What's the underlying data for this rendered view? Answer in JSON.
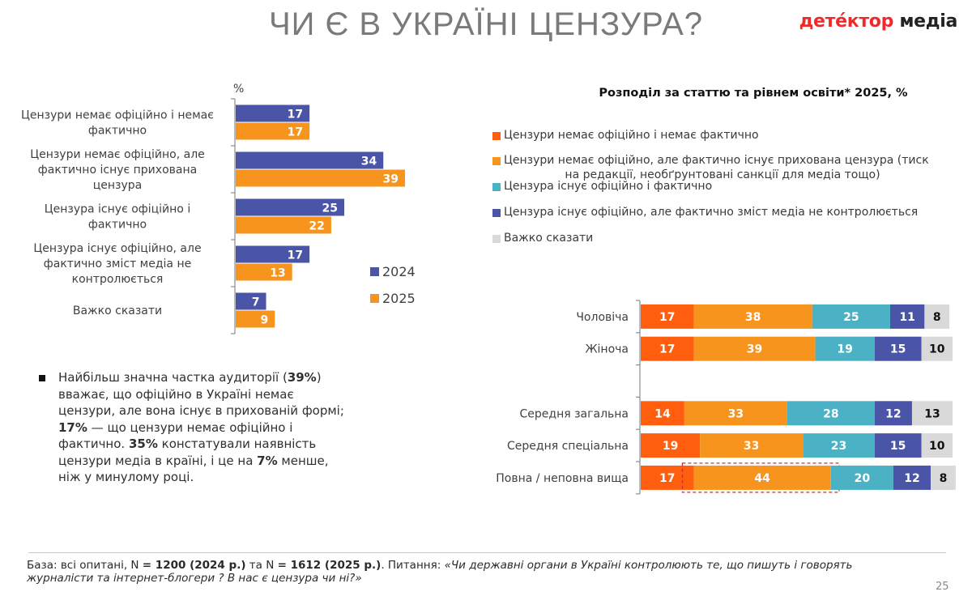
{
  "header": {
    "title": "ЧИ Є В УКРАЇНІ ЦЕНЗУРА?",
    "logo_part1": "детéктор",
    "logo_part2": "медіа"
  },
  "colors": {
    "y2024": "#4a55a8",
    "y2025": "#f7941d",
    "c_none": "#fe5e0e",
    "c_hidden": "#f7941d",
    "c_official": "#4bb2c5",
    "c_official_notcontrolled": "#4a55a8",
    "c_hard": "#d9d9d9",
    "highlight_box": "#d62d2d",
    "title_gray": "#7a7a7a",
    "logo_red": "#ef2a2a"
  },
  "chart_data": [
    {
      "type": "bar",
      "orientation": "horizontal",
      "title": "",
      "unit_label": "%",
      "categories": [
        "Цензури немає офіційно і немає фактично",
        "Цензури немає офіційно, але фактично існує прихована цензура",
        "Цензура існує офіційно і фактично",
        "Цензура існує офіційно, але фактично зміст медіа не контролюється",
        "Важко сказати"
      ],
      "category_lines": [
        [
          "Цензури немає офіційно і немає",
          "фактично"
        ],
        [
          "Цензури немає офіційно, але",
          "фактично існує прихована",
          "цензура"
        ],
        [
          "Цензура існує офіційно і",
          "фактично"
        ],
        [
          "Цензура існує офіційно, але",
          "фактично зміст медіа не",
          "контролюється"
        ],
        [
          "Важко сказати"
        ]
      ],
      "series": [
        {
          "name": "2024",
          "values": [
            17,
            34,
            25,
            17,
            7
          ]
        },
        {
          "name": "2025",
          "values": [
            17,
            39,
            22,
            13,
            9
          ]
        }
      ],
      "xlim": [
        0,
        40
      ],
      "legend_position": "right",
      "grid": false
    },
    {
      "type": "bar",
      "orientation": "horizontal",
      "stacked": true,
      "title": "Розподіл за статтю та рівнем освіти* 2025, %",
      "categories": [
        "Чоловіча",
        "Жіноча",
        "",
        "Середня загальна",
        "Середня спеціальна",
        "Повна / неповна вища"
      ],
      "series": [
        {
          "name": "Цензури немає офіційно і немає фактично",
          "values": [
            17,
            17,
            null,
            14,
            19,
            17
          ]
        },
        {
          "name": "Цензури немає офіційно, але фактично існує прихована цензура (тиск на редакції, необґрунтовані санкції для медіа тощо)",
          "values": [
            38,
            39,
            null,
            33,
            33,
            44
          ]
        },
        {
          "name": "Цензура існує офіційно і фактично",
          "values": [
            25,
            19,
            null,
            28,
            23,
            20
          ]
        },
        {
          "name": "Цензура існує офіційно, але фактично зміст медіа не контролюється",
          "values": [
            11,
            15,
            null,
            12,
            15,
            12
          ]
        },
        {
          "name": "Важко сказати",
          "values": [
            8,
            10,
            null,
            13,
            10,
            8
          ]
        }
      ],
      "annotations": [
        "Dashed red box highlighting value 44 for 'Повна / неповна вища'"
      ],
      "legend_position": "top",
      "xlim": [
        0,
        100
      ],
      "grid": false
    }
  ],
  "legend1": {
    "items": [
      "2024",
      "2025"
    ]
  },
  "legend2": {
    "items": [
      {
        "line1": "Цензури немає офіційно і немає фактично"
      },
      {
        "line1": "Цензури немає офіційно, але фактично існує прихована цензура (тиск",
        "line2": "на редакції, необґрунтовані санкції для медіа тощо)"
      },
      {
        "line1": "Цензура існує офіційно і фактично"
      },
      {
        "line1": "Цензура існує офіційно, але фактично зміст медіа не контролюється"
      },
      {
        "line1": "Важко сказати"
      }
    ]
  },
  "summary": {
    "parts": [
      {
        "t": "Найбільш значна частка аудиторії (",
        "b": false
      },
      {
        "t": "39%",
        "b": true
      },
      {
        "t": ") вважає, що офіційно в Україні немає цензури, але вона існує в прихованій формі; ",
        "b": false
      },
      {
        "t": "17%",
        "b": true
      },
      {
        "t": " — що цензури немає офіційно і фактично. ",
        "b": false
      },
      {
        "t": "35%",
        "b": true
      },
      {
        "t": " констатували наявність цензури медіа в країні, і це на ",
        "b": false
      },
      {
        "t": "7%",
        "b": true
      },
      {
        "t": " менше, ніж у минулому році.",
        "b": false
      }
    ]
  },
  "footer": {
    "parts": [
      {
        "t": "База: всі опитані, N ",
        "s": "n"
      },
      {
        "t": "= 1200 (2024 р.)",
        "s": "b"
      },
      {
        "t": " та N ",
        "s": "n"
      },
      {
        "t": "= 1612 (2025 р.)",
        "s": "b"
      },
      {
        "t": ". Питання: ",
        "s": "n"
      },
      {
        "t": "«Чи державні органи в Україні контролюють те, що пишуть і говорять журналісти та інтернет-блогери ? В нас є цензура чи ні?»",
        "s": "i"
      }
    ],
    "page_number": "25"
  }
}
